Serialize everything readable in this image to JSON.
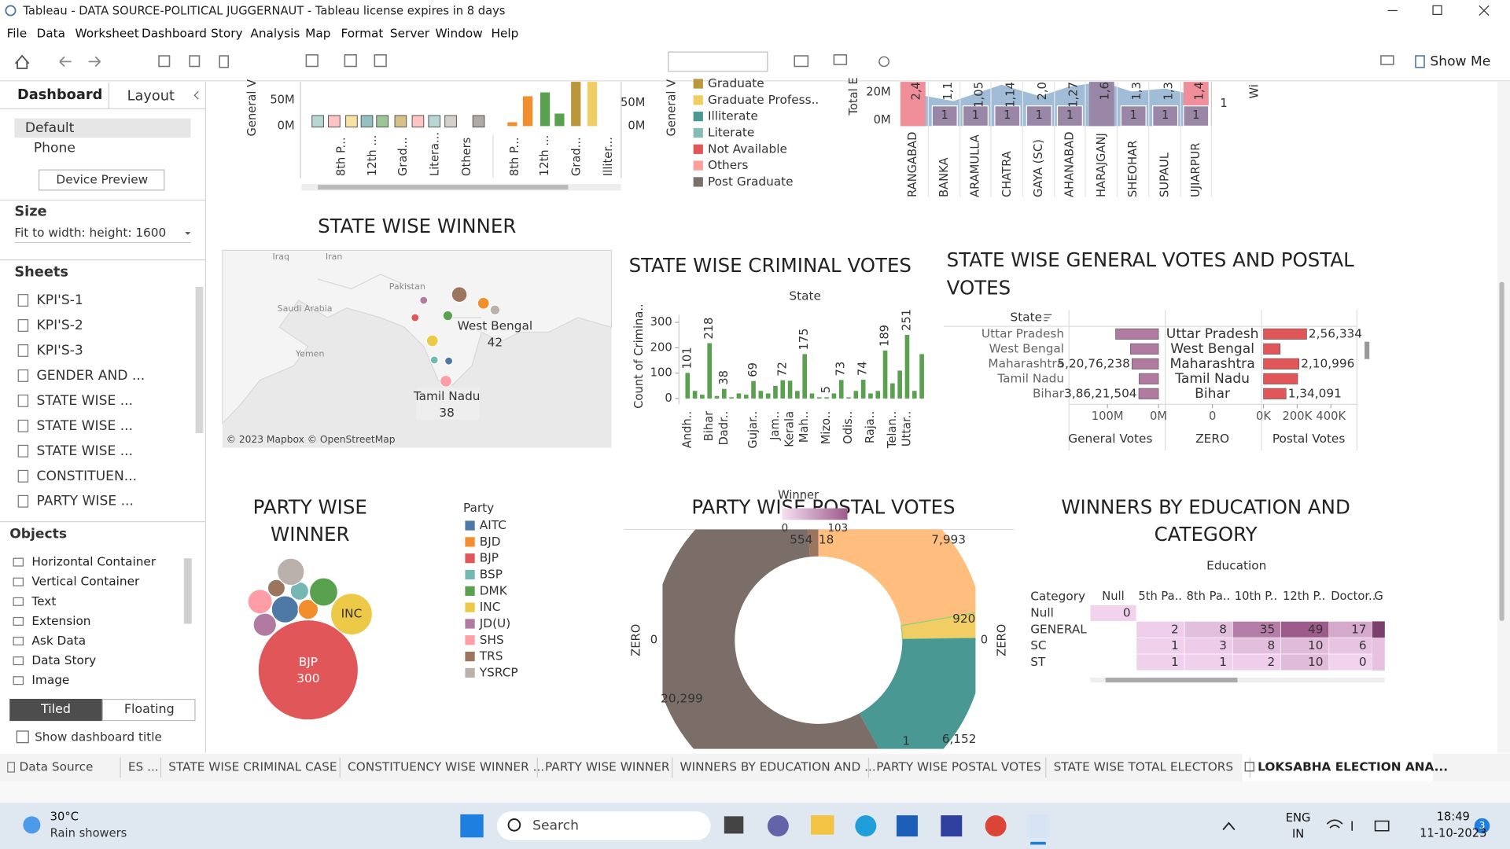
{
  "window": {
    "title": "Tableau - DATA SOURCE-POLITICAL JUGGERNAUT - Tableau license expires in 8 days"
  },
  "menu": [
    "File",
    "Data",
    "Worksheet",
    "Dashboard",
    "Story",
    "Analysis",
    "Map",
    "Format",
    "Server",
    "Window",
    "Help"
  ],
  "toolbar": {
    "show_me": "Show Me"
  },
  "sidebar": {
    "tabs": [
      "Dashboard",
      "Layout"
    ],
    "devices": [
      "Default",
      "Phone"
    ],
    "device_preview": "Device Preview",
    "size_heading": "Size",
    "size_value": "Fit to width: height: 1600",
    "sheets_heading": "Sheets",
    "sheets": [
      "KPI'S-1",
      "KPI'S-2",
      "KPI'S-3",
      "GENDER AND ...",
      "STATE WISE ...",
      "STATE WISE ...",
      "STATE WISE ...",
      "CONSTITUEN...",
      "PARTY WISE ..."
    ],
    "objects_heading": "Objects",
    "objects": [
      "Horizontal Container",
      "Vertical Container",
      "Text",
      "Extension",
      "Ask Data",
      "Data Story",
      "Image"
    ],
    "layout_modes": [
      "Tiled",
      "Floating"
    ],
    "show_title": "Show dashboard title"
  },
  "top_left_chart": {
    "y_label": "General V",
    "yticks": [
      "50M",
      "0M"
    ],
    "y2_label": "General V",
    "y2ticks": [
      "50M",
      "0M"
    ],
    "categories": [
      "8th P...",
      "12th ...",
      "Grad...",
      "Litera...",
      "Others",
      "8th P...",
      "12th ...",
      "Grad...",
      "Illiter..."
    ]
  },
  "education_legend": [
    {
      "name": "Graduate",
      "color": "#b9973a"
    },
    {
      "name": "Graduate Profess..",
      "color": "#f1ce63"
    },
    {
      "name": "Illiterate",
      "color": "#499894"
    },
    {
      "name": "Literate",
      "color": "#86bcb6"
    },
    {
      "name": "Not Available",
      "color": "#e15759"
    },
    {
      "name": "Others",
      "color": "#ff9d9a"
    },
    {
      "name": "Post Graduate",
      "color": "#79706e"
    }
  ],
  "top_right_chart": {
    "y_label": "Total E",
    "yticks": [
      "20M",
      "0M"
    ],
    "categories": [
      "RANGABAD",
      "BANKA",
      "ARAMULLA",
      "CHATRA",
      "GAYA (SC)",
      "AHANABAD",
      "HARAJGANJ",
      "SHEOHAR",
      "SUPAUL",
      "UJIARPUR"
    ],
    "top_labels": [
      "2,4",
      "1,1",
      "1,05",
      "1,14",
      "2,0",
      "1,27",
      "1,6",
      "1,3",
      "1,3",
      "1,4"
    ],
    "counts": [
      null,
      1,
      1,
      1,
      1,
      1,
      null,
      1,
      1,
      1
    ],
    "side_label": "Wi",
    "side_count": 1
  },
  "state_winner_map": {
    "title": "STATE WISE WINNER",
    "places": [
      "Iraq",
      "Iran",
      "Pakistan",
      "Saudi Arabia",
      "Yemen"
    ],
    "labels": [
      {
        "name": "West Bengal",
        "value": 42
      },
      {
        "name": "Tamil Nadu",
        "value": 38
      }
    ],
    "attribution": "© 2023 Mapbox © OpenStreetMap"
  },
  "criminal_votes": {
    "title": "STATE WISE CRIMINAL VOTES",
    "header": "State",
    "y_label": "Count of Crimina..",
    "ylim": [
      0,
      330
    ],
    "yticks": [
      0,
      100,
      200,
      300
    ],
    "color": "#59a14f",
    "categories": [
      "Andh..",
      null,
      null,
      "Bihar",
      null,
      "Dadr..",
      null,
      null,
      null,
      "Gujar..",
      null,
      null,
      "Jam..",
      null,
      "Kerala",
      null,
      "Mah..",
      null,
      null,
      "Mizo..",
      null,
      null,
      "Odis..",
      null,
      null,
      "Raja..",
      null,
      null,
      "Telan..",
      null,
      "Uttar..",
      null,
      null
    ],
    "values": [
      101,
      30,
      15,
      218,
      10,
      38,
      5,
      20,
      15,
      69,
      30,
      20,
      50,
      72,
      70,
      30,
      175,
      20,
      5,
      5,
      20,
      73,
      5,
      30,
      74,
      20,
      30,
      189,
      60,
      110,
      251,
      30,
      175
    ],
    "value_labels": [
      101,
      null,
      null,
      218,
      null,
      38,
      null,
      null,
      null,
      69,
      null,
      null,
      null,
      72,
      null,
      null,
      175,
      null,
      null,
      5,
      null,
      73,
      null,
      null,
      74,
      null,
      null,
      189,
      null,
      null,
      251,
      null,
      null
    ]
  },
  "general_postal": {
    "title": [
      "STATE WISE GENERAL VOTES AND POSTAL",
      "VOTES"
    ],
    "header": "State",
    "states": [
      "Uttar Pradesh",
      "West Bengal",
      "Maharashtra",
      "Tamil Nadu",
      "Bihar"
    ],
    "general_votes": [
      84000000,
      55000000,
      52076238,
      38000000,
      38621504
    ],
    "general_labels": [
      null,
      null,
      "5,20,76,238",
      null,
      "3,86,21,504"
    ],
    "general_color": "#b07aa1",
    "general_ticks": [
      {
        "value": 100000000,
        "label": "100M"
      },
      {
        "value": 0,
        "label": "0M"
      }
    ],
    "zero_tick": 0,
    "postal_votes": [
      256334,
      99000,
      210996,
      203000,
      134091
    ],
    "postal_labels": [
      "2,56,334",
      null,
      "2,10,996",
      null,
      "1,34,091"
    ],
    "postal_color": "#e15759",
    "postal_ticks": [
      {
        "value": 0,
        "label": "0K"
      },
      {
        "value": 200000,
        "label": "200K"
      },
      {
        "value": 400000,
        "label": "400K"
      }
    ],
    "columns": [
      "General Votes",
      "ZERO",
      "Postal Votes"
    ]
  },
  "party_winner": {
    "title": [
      "PARTY WISE",
      "WINNER"
    ],
    "legend_title": "Party",
    "parties": [
      {
        "name": "AITC",
        "color": "#4e79a7",
        "seats": 22
      },
      {
        "name": "BJD",
        "color": "#f28e2b",
        "seats": 12
      },
      {
        "name": "BJP",
        "color": "#e15759",
        "seats": 300
      },
      {
        "name": "BSP",
        "color": "#76b7b2",
        "seats": 10
      },
      {
        "name": "DMK",
        "color": "#59a14f",
        "seats": 24
      },
      {
        "name": "INC",
        "color": "#edc948",
        "seats": 52
      },
      {
        "name": "JD(U)",
        "color": "#b07aa1",
        "seats": 16
      },
      {
        "name": "SHS",
        "color": "#ff9da7",
        "seats": 18
      },
      {
        "name": "TRS",
        "color": "#9c755f",
        "seats": 9
      },
      {
        "name": "YSRCP",
        "color": "#bab0ac",
        "seats": 22
      }
    ]
  },
  "postal_votes": {
    "title": "PARTY WISE POSTAL VOTES",
    "legend_title": "Winner",
    "legend_range": [
      0,
      103
    ],
    "axis_label": "ZERO",
    "axis_tick": 0,
    "values": [
      7993,
      920,
      6152,
      1,
      20299,
      554,
      18
    ],
    "value_labels": [
      "7,993",
      "920",
      "6,152",
      "1",
      "20,299",
      "554",
      "18"
    ],
    "colors": [
      "#ffbe7d",
      "#f1ce63",
      "#499894",
      "#86bcb6",
      "#7b6d68",
      "#9c755f",
      "#d37295"
    ]
  },
  "education_table": {
    "title": [
      "WINNERS BY EDUCATION AND",
      "CATEGORY"
    ],
    "column_header": "Education",
    "row_header": "Category",
    "columns": [
      "Null",
      "5th Pa..",
      "8th Pa..",
      "10th P..",
      "12th P..",
      "Doctor..",
      "G"
    ],
    "rows": [
      {
        "name": "Null",
        "cells": [
          0,
          null,
          null,
          null,
          null,
          null,
          null
        ]
      },
      {
        "name": "GENERAL",
        "cells": [
          null,
          2,
          8,
          35,
          49,
          17,
          null
        ]
      },
      {
        "name": "SC",
        "cells": [
          null,
          1,
          3,
          8,
          10,
          6,
          null
        ]
      },
      {
        "name": "ST",
        "cells": [
          null,
          1,
          1,
          2,
          10,
          0,
          null
        ]
      }
    ]
  },
  "tabs": [
    "Data Source",
    "ES ...",
    "STATE WISE CRIMINAL CASE",
    "CONSTITUENCY WISE WINNER ...",
    "PARTY WISE WINNER",
    "WINNERS BY EDUCATION AND ...",
    "PARTY WISE POSTAL VOTES",
    "STATE WISE TOTAL ELECTORS",
    "LOKSABHA ELECTION ANA..."
  ],
  "taskbar": {
    "temperature": "30°C",
    "weather": "Rain showers",
    "search": "Search",
    "language": [
      "ENG",
      "IN"
    ],
    "time": "18:49",
    "date": "11-10-2023",
    "badge": "3"
  }
}
